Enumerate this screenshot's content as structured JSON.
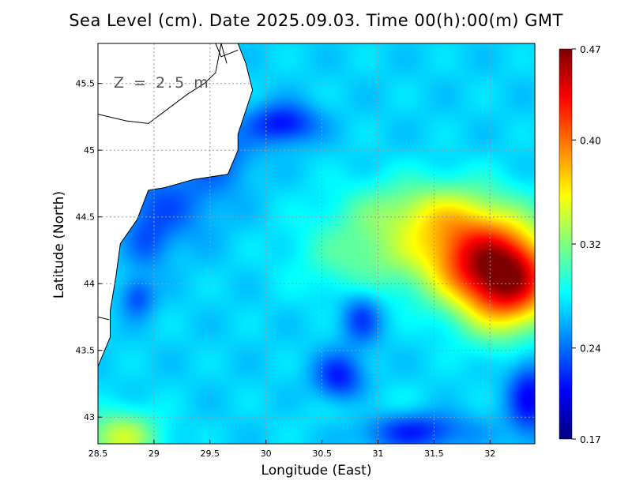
{
  "title": "Sea Level (cm). Date 2025.09.03. Time 00(h):00(m) GMT",
  "depth_label": "Z = 2.5 m",
  "chart_data": {
    "type": "heatmap",
    "title": "Sea Level (cm). Date 2025.09.03. Time 00(h):00(m) GMT",
    "xlabel": "Longitude (East)",
    "ylabel": "Latitude (North)",
    "xlim": [
      28.5,
      32.4
    ],
    "ylim": [
      42.8,
      45.8
    ],
    "x_ticks": [
      28.5,
      29,
      29.5,
      30,
      30.5,
      31,
      31.5,
      32
    ],
    "x_tick_labels": [
      "28.5",
      "29",
      "29.5",
      "30",
      "30.5",
      "31",
      "31.5",
      "32"
    ],
    "y_ticks": [
      43,
      43.5,
      44,
      44.5,
      45,
      45.5
    ],
    "y_tick_labels": [
      "43",
      "43.5",
      "44",
      "44.5",
      "45",
      "45.5"
    ],
    "grid": true,
    "colorbar": {
      "min": 0.17,
      "max": 0.47,
      "ticks": [
        0.17,
        0.24,
        0.32,
        0.4,
        0.47
      ],
      "tick_labels": [
        "0.17",
        "0.24",
        "0.32",
        "0.40",
        "0.47"
      ],
      "colormap": [
        "#00007f",
        "#0000ff",
        "#007fff",
        "#00ffff",
        "#7fff7f",
        "#ffff00",
        "#ff7f00",
        "#ff0000",
        "#7f0000"
      ]
    },
    "field_base": 0.27,
    "features": [
      {
        "lon": 32.15,
        "lat": 44.05,
        "amp": 0.19,
        "sx": 0.45,
        "sy": 0.38
      },
      {
        "lon": 31.7,
        "lat": 44.25,
        "amp": 0.08,
        "sx": 0.45,
        "sy": 0.35
      },
      {
        "lon": 31.4,
        "lat": 44.55,
        "amp": 0.05,
        "sx": 0.7,
        "sy": 0.25
      },
      {
        "lon": 30.9,
        "lat": 44.2,
        "amp": 0.04,
        "sx": 0.6,
        "sy": 0.3
      },
      {
        "lon": 28.7,
        "lat": 42.85,
        "amp": 0.07,
        "sx": 0.35,
        "sy": 0.2
      },
      {
        "lon": 31.0,
        "lat": 43.0,
        "amp": 0.015,
        "sx": 0.6,
        "sy": 0.2
      },
      {
        "lon": 30.15,
        "lat": 45.2,
        "amp": -0.06,
        "sx": 0.3,
        "sy": 0.15
      },
      {
        "lon": 30.85,
        "lat": 43.75,
        "amp": -0.045,
        "sx": 0.18,
        "sy": 0.2
      },
      {
        "lon": 30.65,
        "lat": 43.3,
        "amp": -0.055,
        "sx": 0.22,
        "sy": 0.18
      },
      {
        "lon": 31.3,
        "lat": 42.9,
        "amp": -0.06,
        "sx": 0.5,
        "sy": 0.15
      },
      {
        "lon": 32.35,
        "lat": 43.15,
        "amp": -0.06,
        "sx": 0.2,
        "sy": 0.3
      },
      {
        "lon": 28.85,
        "lat": 43.9,
        "amp": -0.04,
        "sx": 0.15,
        "sy": 0.15
      },
      {
        "lon": 29.1,
        "lat": 44.6,
        "amp": -0.035,
        "sx": 0.45,
        "sy": 0.3
      },
      {
        "lon": 29.6,
        "lat": 44.95,
        "amp": -0.03,
        "sx": 0.3,
        "sy": 0.25
      },
      {
        "lon": 28.95,
        "lat": 44.3,
        "amp": -0.025,
        "sx": 0.2,
        "sy": 0.2
      }
    ],
    "coastline": [
      [
        29.75,
        45.8
      ],
      [
        29.82,
        45.65
      ],
      [
        29.88,
        45.45
      ],
      [
        29.75,
        45.12
      ],
      [
        29.75,
        45.0
      ],
      [
        29.66,
        44.82
      ],
      [
        29.35,
        44.78
      ],
      [
        29.1,
        44.72
      ],
      [
        28.95,
        44.7
      ],
      [
        28.85,
        44.48
      ],
      [
        28.7,
        44.3
      ],
      [
        28.66,
        44.05
      ],
      [
        28.61,
        43.8
      ],
      [
        28.61,
        43.6
      ],
      [
        28.5,
        43.38
      ]
    ],
    "land_outlines": [
      [
        [
          28.5,
          45.27
        ],
        [
          28.75,
          45.22
        ],
        [
          28.95,
          45.2
        ],
        [
          29.3,
          45.42
        ],
        [
          29.45,
          45.5
        ],
        [
          29.55,
          45.58
        ],
        [
          29.6,
          45.8
        ]
      ],
      [
        [
          29.55,
          45.8
        ],
        [
          29.6,
          45.7
        ],
        [
          29.75,
          45.75
        ]
      ],
      [
        [
          29.6,
          45.8
        ],
        [
          29.65,
          45.65
        ]
      ],
      [
        [
          28.5,
          43.75
        ],
        [
          28.6,
          43.73
        ]
      ]
    ]
  }
}
